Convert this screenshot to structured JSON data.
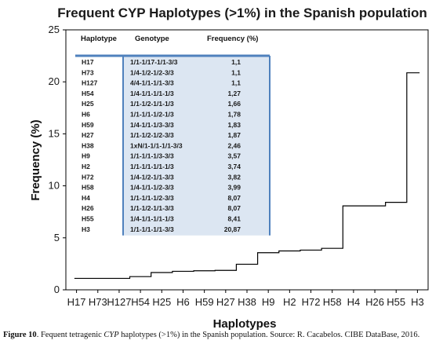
{
  "chart_data": {
    "type": "line",
    "title": "Frequent CYP Haplotypes (>1%) in the Spanish population",
    "xlabel": "Haplotypes",
    "ylabel": "Frequency (%)",
    "ylim": [
      0,
      25
    ],
    "yticks": [
      0,
      5,
      10,
      15,
      20,
      25
    ],
    "grid": false,
    "categories": [
      "H17",
      "H73",
      "H127",
      "H54",
      "H25",
      "H6",
      "H59",
      "H27",
      "H38",
      "H9",
      "H2",
      "H72",
      "H58",
      "H4",
      "H26",
      "H55",
      "H3"
    ],
    "series": [
      {
        "values": [
          1.1,
          1.1,
          1.1,
          1.27,
          1.66,
          1.78,
          1.83,
          1.87,
          2.46,
          3.57,
          3.74,
          3.82,
          3.99,
          8.07,
          8.07,
          8.41,
          20.87
        ]
      }
    ],
    "color": "#000000",
    "inset_table": {
      "header_line_color": "#4f81bd",
      "fill_color": "#dce6f2",
      "columns": [
        "Haplotype",
        "Genotype",
        "Frequency (%)"
      ],
      "rows": [
        [
          "H17",
          "1/1-1/17-1/1-3/3",
          "1,1"
        ],
        [
          "H73",
          "1/4-1/2-1/2-3/3",
          "1,1"
        ],
        [
          "H127",
          "4/4-1/1-1/1-3/3",
          "1,1"
        ],
        [
          "H54",
          "1/4-1/1-1/1-1/3",
          "1,27"
        ],
        [
          "H25",
          "1/1-1/2-1/1-1/3",
          "1,66"
        ],
        [
          "H6",
          "1/1-1/1-1/2-1/3",
          "1,78"
        ],
        [
          "H59",
          "1/4-1/1-1/3-3/3",
          "1,83"
        ],
        [
          "H27",
          "1/1-1/2-1/2-3/3",
          "1,87"
        ],
        [
          "H38",
          "1xN/1-1/1-1/1-3/3",
          "2,46"
        ],
        [
          "H9",
          "1/1-1/1-1/3-3/3",
          "3,57"
        ],
        [
          "H2",
          "1/1-1/1-1/1-1/3",
          "3,74"
        ],
        [
          "H72",
          "1/4-1/2-1/1-3/3",
          "3,82"
        ],
        [
          "H58",
          "1/4-1/1-1/2-3/3",
          "3,99"
        ],
        [
          "H4",
          "1/1-1/1-1/2-3/3",
          "8,07"
        ],
        [
          "H26",
          "1/1-1/2-1/1-3/3",
          "8,07"
        ],
        [
          "H55",
          "1/4-1/1-1/1-1/3",
          "8,41"
        ],
        [
          "H3",
          "1/1-1/1-1/1-3/3",
          "20,87"
        ]
      ]
    }
  },
  "caption": {
    "label": "Figure 10",
    "text_before": ". Fequent tetragenic ",
    "italic": "CYP",
    "text_after": " haplotypes (>1%) in the Spanish population. Source: R. Cacabelos. CIBE DataBase, 2016."
  }
}
